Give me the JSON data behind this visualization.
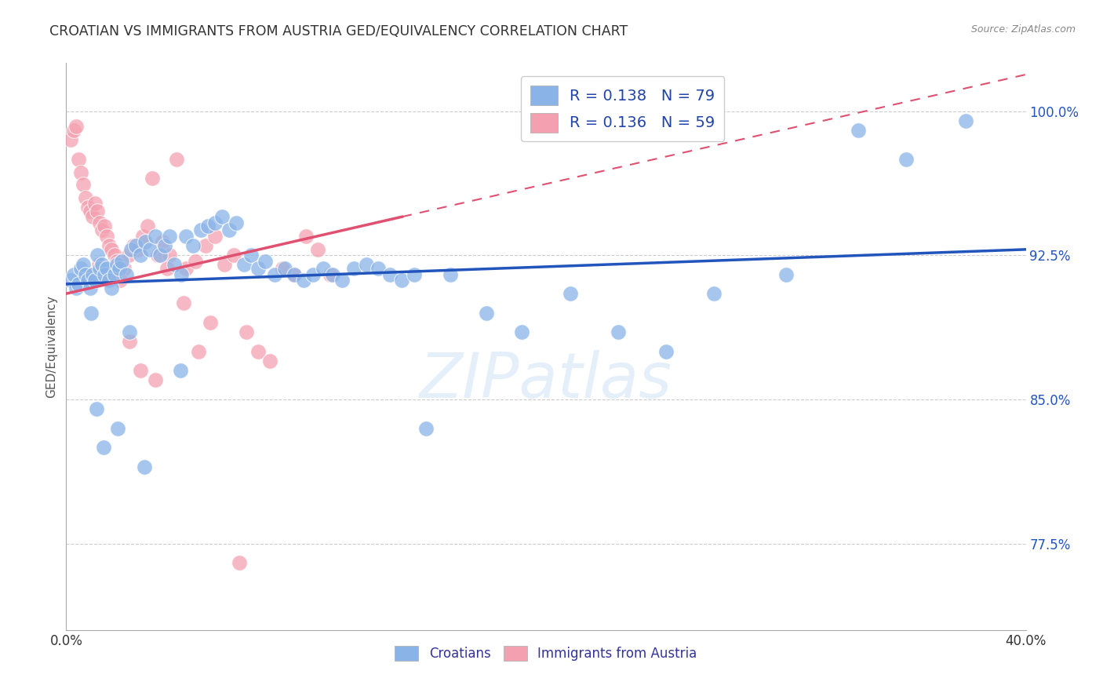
{
  "title": "CROATIAN VS IMMIGRANTS FROM AUSTRIA GED/EQUIVALENCY CORRELATION CHART",
  "source": "Source: ZipAtlas.com",
  "ylabel": "GED/Equivalency",
  "x_min": 0.0,
  "x_max": 40.0,
  "y_min": 73.0,
  "y_max": 102.5,
  "yticks": [
    77.5,
    85.0,
    92.5,
    100.0
  ],
  "ytick_labels": [
    "77.5%",
    "85.0%",
    "92.5%",
    "100.0%"
  ],
  "legend_r1": "R = 0.138",
  "legend_n1": "N = 79",
  "legend_r2": "R = 0.136",
  "legend_n2": "N = 59",
  "blue_color": "#8AB4E8",
  "pink_color": "#F4A0B0",
  "blue_line_color": "#2255BB",
  "pink_line_color": "#E05070",
  "watermark": "ZIPatlas",
  "blue_line_x0": 0.0,
  "blue_line_y0": 91.0,
  "blue_line_x1": 40.0,
  "blue_line_y1": 92.8,
  "pink_line_x0": 0.0,
  "pink_line_y0": 90.5,
  "pink_line_x1": 14.0,
  "pink_line_y1": 94.5,
  "pink_dash_x0": 14.0,
  "pink_dash_y0": 94.5,
  "pink_dash_x1": 40.0,
  "pink_dash_y1": 101.9,
  "blue_scatter_x": [
    0.2,
    0.3,
    0.4,
    0.5,
    0.6,
    0.7,
    0.8,
    0.9,
    1.0,
    1.1,
    1.2,
    1.3,
    1.4,
    1.5,
    1.6,
    1.7,
    1.8,
    1.9,
    2.0,
    2.1,
    2.2,
    2.3,
    2.5,
    2.7,
    2.9,
    3.1,
    3.3,
    3.5,
    3.7,
    3.9,
    4.1,
    4.3,
    4.5,
    4.8,
    5.0,
    5.3,
    5.6,
    5.9,
    6.2,
    6.5,
    6.8,
    7.1,
    7.4,
    7.7,
    8.0,
    8.3,
    8.7,
    9.1,
    9.5,
    9.9,
    10.3,
    10.7,
    11.1,
    11.5,
    12.0,
    12.5,
    13.0,
    13.5,
    14.0,
    14.5,
    15.0,
    16.0,
    17.5,
    19.0,
    21.0,
    23.0,
    25.0,
    27.0,
    30.0,
    33.0,
    35.0,
    37.5,
    1.05,
    1.25,
    1.55,
    2.15,
    2.65,
    3.25,
    4.75
  ],
  "blue_scatter_y": [
    91.2,
    91.5,
    90.8,
    91.0,
    91.8,
    92.0,
    91.5,
    91.2,
    90.8,
    91.5,
    91.2,
    92.5,
    91.8,
    92.0,
    91.5,
    91.8,
    91.2,
    90.8,
    91.5,
    92.0,
    91.8,
    92.2,
    91.5,
    92.8,
    93.0,
    92.5,
    93.2,
    92.8,
    93.5,
    92.5,
    93.0,
    93.5,
    92.0,
    91.5,
    93.5,
    93.0,
    93.8,
    94.0,
    94.2,
    94.5,
    93.8,
    94.2,
    92.0,
    92.5,
    91.8,
    92.2,
    91.5,
    91.8,
    91.5,
    91.2,
    91.5,
    91.8,
    91.5,
    91.2,
    91.8,
    92.0,
    91.8,
    91.5,
    91.2,
    91.5,
    83.5,
    91.5,
    89.5,
    88.5,
    90.5,
    88.5,
    87.5,
    90.5,
    91.5,
    99.0,
    97.5,
    99.5,
    89.5,
    84.5,
    82.5,
    83.5,
    88.5,
    81.5,
    86.5
  ],
  "pink_scatter_x": [
    0.2,
    0.3,
    0.4,
    0.5,
    0.6,
    0.7,
    0.8,
    0.9,
    1.0,
    1.1,
    1.2,
    1.3,
    1.4,
    1.5,
    1.6,
    1.7,
    1.8,
    1.9,
    2.0,
    2.1,
    2.2,
    2.4,
    2.6,
    2.8,
    3.0,
    3.2,
    3.4,
    3.6,
    3.8,
    4.0,
    4.3,
    4.6,
    5.0,
    5.4,
    5.8,
    6.2,
    6.6,
    7.0,
    7.5,
    8.0,
    8.5,
    9.0,
    9.5,
    10.0,
    10.5,
    1.05,
    1.35,
    1.65,
    1.95,
    2.25,
    2.65,
    3.1,
    3.7,
    4.2,
    4.9,
    5.5,
    6.0,
    7.2,
    11.0
  ],
  "pink_scatter_y": [
    98.5,
    99.0,
    99.2,
    97.5,
    96.8,
    96.2,
    95.5,
    95.0,
    94.8,
    94.5,
    95.2,
    94.8,
    94.2,
    93.8,
    94.0,
    93.5,
    93.0,
    92.8,
    92.5,
    92.2,
    92.0,
    91.8,
    92.5,
    93.0,
    92.8,
    93.5,
    94.0,
    96.5,
    92.5,
    93.2,
    92.5,
    97.5,
    91.8,
    92.2,
    93.0,
    93.5,
    92.0,
    92.5,
    88.5,
    87.5,
    87.0,
    91.8,
    91.5,
    93.5,
    92.8,
    91.5,
    92.0,
    91.5,
    91.8,
    91.2,
    88.0,
    86.5,
    86.0,
    91.8,
    90.0,
    87.5,
    89.0,
    76.5,
    91.5
  ]
}
